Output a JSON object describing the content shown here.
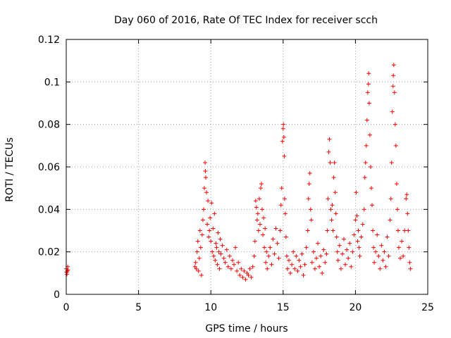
{
  "chart_data": {
    "type": "scatter",
    "title": "Day 060 of 2016, Rate Of TEC Index for receiver scch",
    "xlabel": "GPS time / hours",
    "ylabel": "ROTI / TECUs",
    "xlim": [
      0,
      25
    ],
    "ylim": [
      0,
      0.12
    ],
    "xticks": [
      0,
      5,
      10,
      15,
      20,
      25
    ],
    "xtick_labels": [
      "0",
      "5",
      "10",
      "15",
      "20",
      "25"
    ],
    "yticks": [
      0,
      0.02,
      0.04,
      0.06,
      0.08,
      0.1,
      0.12
    ],
    "ytick_labels": [
      "0",
      "0.02",
      "0.04",
      "0.06",
      "0.08",
      "0.1",
      "0.12"
    ],
    "grid": true,
    "marker": "+",
    "color": "#ff0000",
    "series": [
      {
        "name": "scch",
        "points": [
          [
            0.0,
            0.012
          ],
          [
            0.02,
            0.0105
          ],
          [
            0.05,
            0.0095
          ],
          [
            0.08,
            0.011
          ],
          [
            0.1,
            0.013
          ],
          [
            0.12,
            0.0115
          ],
          [
            8.9,
            0.013
          ],
          [
            8.95,
            0.015
          ],
          [
            9.0,
            0.012
          ],
          [
            9.05,
            0.02
          ],
          [
            9.1,
            0.025
          ],
          [
            9.15,
            0.011
          ],
          [
            9.2,
            0.017
          ],
          [
            9.25,
            0.03
          ],
          [
            9.3,
            0.022
          ],
          [
            9.35,
            0.009
          ],
          [
            9.4,
            0.028
          ],
          [
            9.45,
            0.035
          ],
          [
            9.5,
            0.04
          ],
          [
            9.55,
            0.05
          ],
          [
            9.6,
            0.062
          ],
          [
            9.62,
            0.058
          ],
          [
            9.65,
            0.055
          ],
          [
            9.7,
            0.048
          ],
          [
            9.75,
            0.033
          ],
          [
            9.8,
            0.044
          ],
          [
            9.85,
            0.027
          ],
          [
            9.9,
            0.03
          ],
          [
            9.95,
            0.036
          ],
          [
            10.0,
            0.025
          ],
          [
            10.05,
            0.043
          ],
          [
            10.1,
            0.02
          ],
          [
            10.15,
            0.031
          ],
          [
            10.2,
            0.018
          ],
          [
            10.25,
            0.038
          ],
          [
            10.3,
            0.016
          ],
          [
            10.35,
            0.024
          ],
          [
            10.4,
            0.022
          ],
          [
            10.45,
            0.014
          ],
          [
            10.5,
            0.029
          ],
          [
            10.55,
            0.02
          ],
          [
            10.6,
            0.012
          ],
          [
            10.65,
            0.026
          ],
          [
            10.7,
            0.019
          ],
          [
            10.8,
            0.023
          ],
          [
            10.9,
            0.017
          ],
          [
            11.0,
            0.015
          ],
          [
            11.1,
            0.021
          ],
          [
            11.2,
            0.013
          ],
          [
            11.3,
            0.018
          ],
          [
            11.4,
            0.012
          ],
          [
            11.5,
            0.016
          ],
          [
            11.6,
            0.014
          ],
          [
            11.7,
            0.022
          ],
          [
            11.8,
            0.011
          ],
          [
            11.9,
            0.015
          ],
          [
            12.0,
            0.009
          ],
          [
            12.1,
            0.012
          ],
          [
            12.2,
            0.008
          ],
          [
            12.3,
            0.011
          ],
          [
            12.4,
            0.007
          ],
          [
            12.5,
            0.01
          ],
          [
            12.6,
            0.009
          ],
          [
            12.7,
            0.012
          ],
          [
            12.8,
            0.008
          ],
          [
            12.9,
            0.013
          ],
          [
            13.0,
            0.018
          ],
          [
            13.05,
            0.025
          ],
          [
            13.1,
            0.044
          ],
          [
            13.15,
            0.041
          ],
          [
            13.2,
            0.035
          ],
          [
            13.25,
            0.038
          ],
          [
            13.3,
            0.03
          ],
          [
            13.35,
            0.045
          ],
          [
            13.4,
            0.033
          ],
          [
            13.45,
            0.05
          ],
          [
            13.5,
            0.052
          ],
          [
            13.55,
            0.04
          ],
          [
            13.6,
            0.028
          ],
          [
            13.65,
            0.036
          ],
          [
            13.7,
            0.022
          ],
          [
            13.75,
            0.031
          ],
          [
            13.8,
            0.015
          ],
          [
            13.85,
            0.02
          ],
          [
            13.9,
            0.012
          ],
          [
            14.0,
            0.018
          ],
          [
            14.1,
            0.022
          ],
          [
            14.2,
            0.014
          ],
          [
            14.3,
            0.026
          ],
          [
            14.4,
            0.019
          ],
          [
            14.5,
            0.031
          ],
          [
            14.6,
            0.024
          ],
          [
            14.7,
            0.017
          ],
          [
            14.8,
            0.03
          ],
          [
            14.85,
            0.042
          ],
          [
            14.9,
            0.05
          ],
          [
            14.95,
            0.072
          ],
          [
            15.0,
            0.078
          ],
          [
            15.02,
            0.08
          ],
          [
            15.05,
            0.074
          ],
          [
            15.08,
            0.065
          ],
          [
            15.1,
            0.045
          ],
          [
            15.15,
            0.038
          ],
          [
            15.2,
            0.027
          ],
          [
            15.25,
            0.018
          ],
          [
            15.3,
            0.012
          ],
          [
            15.4,
            0.016
          ],
          [
            15.5,
            0.01
          ],
          [
            15.6,
            0.014
          ],
          [
            15.7,
            0.02
          ],
          [
            15.8,
            0.012
          ],
          [
            15.9,
            0.018
          ],
          [
            16.0,
            0.011
          ],
          [
            16.1,
            0.016
          ],
          [
            16.2,
            0.013
          ],
          [
            16.3,
            0.019
          ],
          [
            16.4,
            0.009
          ],
          [
            16.5,
            0.014
          ],
          [
            16.6,
            0.022
          ],
          [
            16.7,
            0.03
          ],
          [
            16.75,
            0.045
          ],
          [
            16.8,
            0.052
          ],
          [
            16.85,
            0.057
          ],
          [
            16.9,
            0.04
          ],
          [
            16.95,
            0.035
          ],
          [
            17.0,
            0.015
          ],
          [
            17.1,
            0.02
          ],
          [
            17.2,
            0.012
          ],
          [
            17.3,
            0.017
          ],
          [
            17.4,
            0.024
          ],
          [
            17.5,
            0.013
          ],
          [
            17.6,
            0.018
          ],
          [
            17.7,
            0.01
          ],
          [
            17.8,
            0.021
          ],
          [
            17.9,
            0.015
          ],
          [
            18.0,
            0.019
          ],
          [
            18.05,
            0.03
          ],
          [
            18.1,
            0.045
          ],
          [
            18.15,
            0.067
          ],
          [
            18.2,
            0.073
          ],
          [
            18.25,
            0.062
          ],
          [
            18.3,
            0.04
          ],
          [
            18.35,
            0.035
          ],
          [
            18.4,
            0.042
          ],
          [
            18.45,
            0.03
          ],
          [
            18.5,
            0.055
          ],
          [
            18.55,
            0.062
          ],
          [
            18.6,
            0.048
          ],
          [
            18.65,
            0.038
          ],
          [
            18.7,
            0.027
          ],
          [
            18.75,
            0.02
          ],
          [
            18.8,
            0.016
          ],
          [
            18.9,
            0.023
          ],
          [
            19.0,
            0.012
          ],
          [
            19.1,
            0.019
          ],
          [
            19.2,
            0.026
          ],
          [
            19.3,
            0.014
          ],
          [
            19.4,
            0.021
          ],
          [
            19.5,
            0.017
          ],
          [
            19.6,
            0.024
          ],
          [
            19.7,
            0.013
          ],
          [
            19.8,
            0.02
          ],
          [
            19.9,
            0.028
          ],
          [
            20.0,
            0.035
          ],
          [
            20.05,
            0.048
          ],
          [
            20.1,
            0.037
          ],
          [
            20.15,
            0.025
          ],
          [
            20.2,
            0.03
          ],
          [
            20.25,
            0.022
          ],
          [
            20.3,
            0.018
          ],
          [
            20.4,
            0.027
          ],
          [
            20.5,
            0.033
          ],
          [
            20.6,
            0.04
          ],
          [
            20.65,
            0.055
          ],
          [
            20.7,
            0.062
          ],
          [
            20.75,
            0.07
          ],
          [
            20.8,
            0.082
          ],
          [
            20.85,
            0.095
          ],
          [
            20.9,
            0.099
          ],
          [
            20.92,
            0.104
          ],
          [
            20.95,
            0.09
          ],
          [
            21.0,
            0.075
          ],
          [
            21.05,
            0.06
          ],
          [
            21.1,
            0.05
          ],
          [
            21.15,
            0.042
          ],
          [
            21.2,
            0.03
          ],
          [
            21.25,
            0.022
          ],
          [
            21.3,
            0.015
          ],
          [
            21.4,
            0.02
          ],
          [
            21.5,
            0.028
          ],
          [
            21.6,
            0.018
          ],
          [
            21.7,
            0.012
          ],
          [
            21.8,
            0.023
          ],
          [
            21.9,
            0.016
          ],
          [
            22.0,
            0.02
          ],
          [
            22.1,
            0.013
          ],
          [
            22.2,
            0.027
          ],
          [
            22.3,
            0.018
          ],
          [
            22.4,
            0.035
          ],
          [
            22.45,
            0.045
          ],
          [
            22.5,
            0.062
          ],
          [
            22.55,
            0.086
          ],
          [
            22.6,
            0.098
          ],
          [
            22.62,
            0.103
          ],
          [
            22.65,
            0.108
          ],
          [
            22.7,
            0.095
          ],
          [
            22.75,
            0.08
          ],
          [
            22.8,
            0.07
          ],
          [
            22.85,
            0.052
          ],
          [
            22.9,
            0.04
          ],
          [
            22.95,
            0.03
          ],
          [
            23.0,
            0.022
          ],
          [
            23.1,
            0.017
          ],
          [
            23.2,
            0.025
          ],
          [
            23.3,
            0.018
          ],
          [
            23.4,
            0.03
          ],
          [
            23.5,
            0.045
          ],
          [
            23.55,
            0.047
          ],
          [
            23.6,
            0.038
          ],
          [
            23.65,
            0.03
          ],
          [
            23.7,
            0.022
          ],
          [
            23.75,
            0.015
          ],
          [
            23.8,
            0.012
          ]
        ]
      }
    ]
  }
}
